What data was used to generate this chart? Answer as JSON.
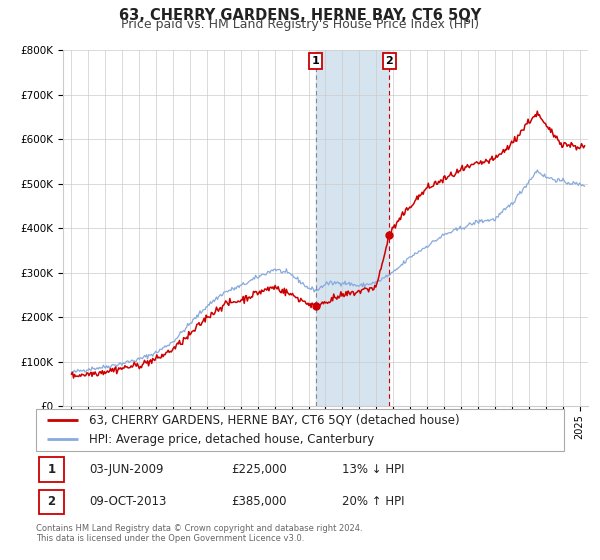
{
  "title": "63, CHERRY GARDENS, HERNE BAY, CT6 5QY",
  "subtitle": "Price paid vs. HM Land Registry's House Price Index (HPI)",
  "ylim": [
    0,
    800000
  ],
  "yticks": [
    0,
    100000,
    200000,
    300000,
    400000,
    500000,
    600000,
    700000,
    800000
  ],
  "ytick_labels": [
    "£0",
    "£100K",
    "£200K",
    "£300K",
    "£400K",
    "£500K",
    "£600K",
    "£700K",
    "£800K"
  ],
  "xlim_start": 1994.5,
  "xlim_end": 2025.5,
  "transaction1_date": 2009.42,
  "transaction1_price": 225000,
  "transaction2_date": 2013.77,
  "transaction2_price": 385000,
  "shaded_color": "#d6e4f0",
  "line1_color": "#cc0000",
  "line2_color": "#88aadd",
  "grid_color": "#cccccc",
  "legend1_label": "63, CHERRY GARDENS, HERNE BAY, CT6 5QY (detached house)",
  "legend2_label": "HPI: Average price, detached house, Canterbury",
  "table_row1": [
    "1",
    "03-JUN-2009",
    "£225,000",
    "13% ↓ HPI"
  ],
  "table_row2": [
    "2",
    "09-OCT-2013",
    "£385,000",
    "20% ↑ HPI"
  ],
  "footer1": "Contains HM Land Registry data © Crown copyright and database right 2024.",
  "footer2": "This data is licensed under the Open Government Licence v3.0.",
  "title_fontsize": 10.5,
  "subtitle_fontsize": 9,
  "tick_fontsize": 7.5,
  "legend_fontsize": 8.5
}
